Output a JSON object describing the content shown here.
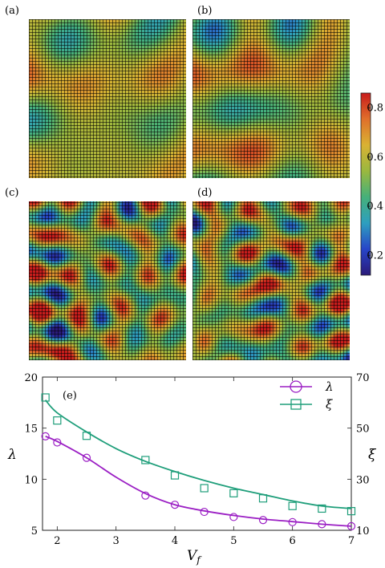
{
  "panels": [
    {
      "label": "(a)",
      "seed": 11,
      "style": "coarse"
    },
    {
      "label": "(b)",
      "seed": 23,
      "style": "stripes"
    },
    {
      "label": "(c)",
      "seed": 37,
      "style": "fine"
    },
    {
      "label": "(d)",
      "seed": 53,
      "style": "fine"
    }
  ],
  "colorbar": {
    "ticks": [
      "0.8",
      "0.6",
      "0.4",
      "0.2"
    ],
    "tick_values": [
      0.8,
      0.6,
      0.4,
      0.2
    ],
    "range": [
      0.12,
      0.86
    ],
    "colors": [
      "#2a1a7a",
      "#2745c8",
      "#2e9fbf",
      "#45b07a",
      "#9ab83f",
      "#d9b233",
      "#e0702b",
      "#c81c1c"
    ]
  },
  "chart_data": {
    "type": "scatter",
    "panel_label": "(e)",
    "xlabel": "V",
    "xlabel_sub": "f",
    "ylabel_left": "λ",
    "ylabel_right": "ξ",
    "xlim": [
      1.75,
      7.0
    ],
    "ylim_left": [
      5,
      20
    ],
    "ylim_right": [
      10,
      70
    ],
    "x_ticks": [
      "2",
      "3",
      "4",
      "5",
      "6",
      "7"
    ],
    "y_left_ticks": [
      "5",
      "10",
      "15",
      "20"
    ],
    "y_right_ticks": [
      "10",
      "30",
      "50",
      "70"
    ],
    "legend_position": "top-right",
    "series": [
      {
        "name": "λ",
        "axis": "left",
        "marker": "circle",
        "color": "#9b1fc4",
        "x": [
          1.8,
          2.0,
          2.5,
          3.5,
          4.0,
          4.5,
          5.0,
          5.5,
          6.0,
          6.5,
          7.0
        ],
        "y": [
          14.2,
          13.6,
          12.1,
          8.4,
          7.5,
          6.8,
          6.3,
          6.0,
          5.8,
          5.6,
          5.4
        ],
        "fit_x": [
          1.8,
          2.0,
          2.5,
          3.0,
          3.5,
          4.0,
          4.5,
          5.0,
          5.5,
          6.0,
          6.5,
          7.0
        ],
        "fit_y": [
          14.2,
          13.7,
          12.1,
          10.2,
          8.6,
          7.5,
          6.9,
          6.45,
          6.1,
          5.85,
          5.6,
          5.4
        ]
      },
      {
        "name": "ξ",
        "axis": "right",
        "marker": "square",
        "color": "#1e9e7a",
        "x": [
          1.8,
          2.0,
          2.5,
          3.5,
          4.0,
          4.5,
          5.0,
          5.5,
          6.0,
          6.5,
          7.0
        ],
        "y": [
          62.0,
          53.0,
          47.0,
          37.5,
          31.5,
          26.5,
          24.5,
          22.5,
          19.5,
          18.5,
          17.5
        ],
        "fit_x": [
          1.8,
          2.0,
          2.5,
          3.0,
          3.5,
          4.0,
          4.5,
          5.0,
          5.5,
          6.0,
          6.5,
          7.0
        ],
        "fit_y": [
          61.0,
          56.0,
          48.5,
          42.0,
          37.0,
          33.0,
          29.5,
          26.5,
          24.0,
          21.5,
          19.5,
          18.5
        ]
      }
    ]
  }
}
